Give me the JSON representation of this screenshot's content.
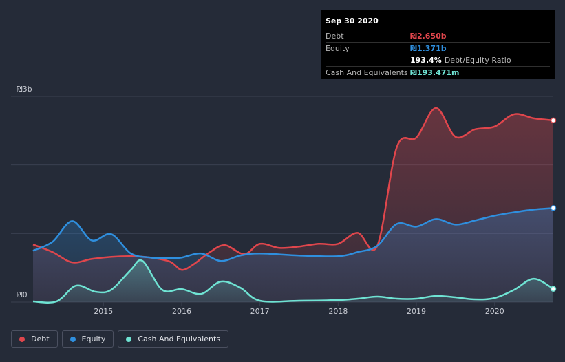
{
  "tooltip": {
    "date": "Sep 30 2020",
    "debt_label": "Debt",
    "debt_value": "₪2.650b",
    "equity_label": "Equity",
    "equity_value": "₪1.371b",
    "ratio_value": "193.4%",
    "ratio_label": "Debt/Equity Ratio",
    "cash_label": "Cash And Equivalents",
    "cash_value": "₪193.471m"
  },
  "legend": {
    "debt": "Debt",
    "equity": "Equity",
    "cash": "Cash And Equivalents"
  },
  "colors": {
    "debt": "#e0464c",
    "equity": "#2f8fde",
    "cash": "#6fe3d3",
    "grid": "#3a4050",
    "axis_text": "#c9ccd4"
  },
  "chart_data": {
    "type": "area",
    "title": "",
    "xlabel": "",
    "ylabel": "",
    "x_ticks": [
      {
        "label": "2015",
        "value": 2015.0
      },
      {
        "label": "2016",
        "value": 2016.0
      },
      {
        "label": "2017",
        "value": 2017.0
      },
      {
        "label": "2018",
        "value": 2018.0
      },
      {
        "label": "2019",
        "value": 2019.0
      },
      {
        "label": "2020",
        "value": 2020.0
      }
    ],
    "y_ticks": [
      {
        "label": "₪3b",
        "value": 3.0
      },
      {
        "label": "₪0",
        "value": 0.0
      }
    ],
    "xlim": [
      2014.1,
      2020.75
    ],
    "ylim": [
      0,
      3.0
    ],
    "units": "billions ILS",
    "series": [
      {
        "name": "Debt",
        "key": "debt",
        "points": [
          [
            2014.1,
            0.84
          ],
          [
            2014.35,
            0.73
          ],
          [
            2014.6,
            0.58
          ],
          [
            2014.85,
            0.63
          ],
          [
            2015.1,
            0.66
          ],
          [
            2015.35,
            0.67
          ],
          [
            2015.6,
            0.65
          ],
          [
            2015.85,
            0.59
          ],
          [
            2016.0,
            0.47
          ],
          [
            2016.15,
            0.55
          ],
          [
            2016.35,
            0.72
          ],
          [
            2016.55,
            0.83
          ],
          [
            2016.8,
            0.7
          ],
          [
            2017.0,
            0.85
          ],
          [
            2017.25,
            0.79
          ],
          [
            2017.5,
            0.81
          ],
          [
            2017.75,
            0.85
          ],
          [
            2018.0,
            0.85
          ],
          [
            2018.25,
            1.01
          ],
          [
            2018.5,
            0.82
          ],
          [
            2018.75,
            2.26
          ],
          [
            2019.0,
            2.4
          ],
          [
            2019.25,
            2.83
          ],
          [
            2019.5,
            2.41
          ],
          [
            2019.75,
            2.52
          ],
          [
            2020.0,
            2.56
          ],
          [
            2020.25,
            2.74
          ],
          [
            2020.5,
            2.68
          ],
          [
            2020.75,
            2.65
          ]
        ]
      },
      {
        "name": "Equity",
        "key": "equity",
        "points": [
          [
            2014.1,
            0.75
          ],
          [
            2014.35,
            0.88
          ],
          [
            2014.6,
            1.18
          ],
          [
            2014.85,
            0.9
          ],
          [
            2015.1,
            0.99
          ],
          [
            2015.35,
            0.71
          ],
          [
            2015.6,
            0.65
          ],
          [
            2015.85,
            0.64
          ],
          [
            2016.0,
            0.65
          ],
          [
            2016.25,
            0.71
          ],
          [
            2016.5,
            0.6
          ],
          [
            2016.75,
            0.68
          ],
          [
            2017.0,
            0.71
          ],
          [
            2017.5,
            0.68
          ],
          [
            2018.0,
            0.67
          ],
          [
            2018.25,
            0.73
          ],
          [
            2018.5,
            0.82
          ],
          [
            2018.75,
            1.14
          ],
          [
            2019.0,
            1.1
          ],
          [
            2019.25,
            1.21
          ],
          [
            2019.5,
            1.13
          ],
          [
            2019.75,
            1.19
          ],
          [
            2020.0,
            1.26
          ],
          [
            2020.25,
            1.31
          ],
          [
            2020.5,
            1.35
          ],
          [
            2020.75,
            1.371
          ]
        ]
      },
      {
        "name": "Cash And Equivalents",
        "key": "cash",
        "points": [
          [
            2014.1,
            0.01
          ],
          [
            2014.4,
            0.01
          ],
          [
            2014.65,
            0.24
          ],
          [
            2014.9,
            0.15
          ],
          [
            2015.1,
            0.18
          ],
          [
            2015.35,
            0.47
          ],
          [
            2015.5,
            0.6
          ],
          [
            2015.75,
            0.18
          ],
          [
            2016.0,
            0.19
          ],
          [
            2016.25,
            0.12
          ],
          [
            2016.5,
            0.3
          ],
          [
            2016.75,
            0.21
          ],
          [
            2017.0,
            0.02
          ],
          [
            2017.5,
            0.02
          ],
          [
            2018.0,
            0.03
          ],
          [
            2018.25,
            0.05
          ],
          [
            2018.5,
            0.08
          ],
          [
            2018.75,
            0.05
          ],
          [
            2019.0,
            0.05
          ],
          [
            2019.25,
            0.09
          ],
          [
            2019.5,
            0.07
          ],
          [
            2019.75,
            0.04
          ],
          [
            2020.0,
            0.06
          ],
          [
            2020.25,
            0.18
          ],
          [
            2020.5,
            0.34
          ],
          [
            2020.75,
            0.193
          ]
        ]
      }
    ]
  }
}
